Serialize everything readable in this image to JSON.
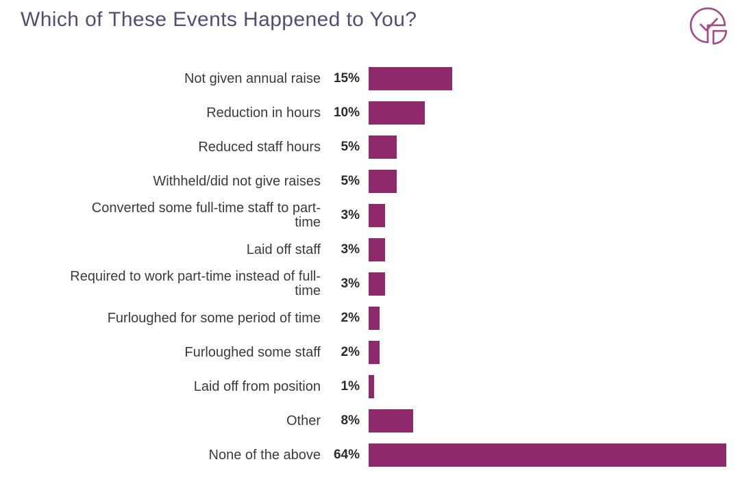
{
  "page": {
    "title": "Which of These Events Happened to You?"
  },
  "logo": {
    "icon": "pie-chart-check-icon",
    "color": "#a34a87"
  },
  "chart_data": {
    "type": "bar",
    "orientation": "horizontal",
    "title": "Which of These Events Happened to You?",
    "categories": [
      "Not given annual raise",
      "Reduction in hours",
      "Reduced staff hours",
      "Withheld/did not give raises",
      "Converted some full-time staff to part-time",
      "Laid off staff",
      "Required to work part-time instead of full-time",
      "Furloughed for some period of time",
      "Furloughed some staff",
      "Laid off from position",
      "Other",
      "None of the above"
    ],
    "values": [
      15,
      10,
      5,
      5,
      3,
      3,
      3,
      2,
      2,
      1,
      8,
      64
    ],
    "rows": [
      {
        "label": "Not given annual raise",
        "pct": "15%",
        "value": 15
      },
      {
        "label": "Reduction in hours",
        "pct": "10%",
        "value": 10
      },
      {
        "label": "Reduced staff hours",
        "pct": "5%",
        "value": 5
      },
      {
        "label": "Withheld/did not give raises",
        "pct": "5%",
        "value": 5
      },
      {
        "label": "Converted some full-time staff to part-\ntime",
        "pct": "3%",
        "value": 3
      },
      {
        "label": "Laid off staff",
        "pct": "3%",
        "value": 3
      },
      {
        "label": "Required to work part-time instead of full-\ntime",
        "pct": "3%",
        "value": 3
      },
      {
        "label": "Furloughed for some period of time",
        "pct": "2%",
        "value": 2
      },
      {
        "label": "Furloughed some staff",
        "pct": "2%",
        "value": 2
      },
      {
        "label": "Laid off from position",
        "pct": "1%",
        "value": 1
      },
      {
        "label": "Other",
        "pct": "8%",
        "value": 8
      },
      {
        "label": "None of the above",
        "pct": "64%",
        "value": 64
      }
    ],
    "xlim": [
      0,
      64
    ],
    "bar_color": "#8e2a6c",
    "value_label_position": "left-of-bar",
    "grid": false,
    "legend": false,
    "axis_ticks": false
  }
}
